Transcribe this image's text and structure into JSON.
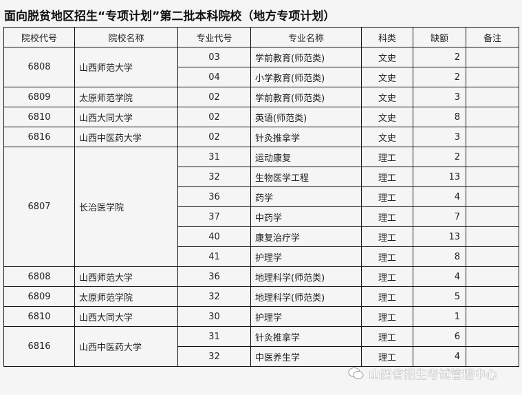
{
  "title": "面向脱贫地区招生“专项计划”第二批本科院校（地方专项计划）",
  "headers": [
    "院校代号",
    "院校名称",
    "专业代号",
    "专业名称",
    "科类",
    "缺额",
    "备注"
  ],
  "groups": [
    {
      "code": "6808",
      "name": "山西师范大学",
      "rows": [
        [
          "03",
          "学前教育(师范类)",
          "文史",
          "2",
          ""
        ],
        [
          "04",
          "小学教育(师范类)",
          "文史",
          "2",
          ""
        ]
      ]
    },
    {
      "code": "6809",
      "name": "太原师范学院",
      "rows": [
        [
          "02",
          "学前教育(师范类)",
          "文史",
          "3",
          ""
        ]
      ]
    },
    {
      "code": "6810",
      "name": "山西大同大学",
      "rows": [
        [
          "02",
          "英语(师范类)",
          "文史",
          "8",
          ""
        ]
      ]
    },
    {
      "code": "6816",
      "name": "山西中医药大学",
      "rows": [
        [
          "02",
          "针灸推拿学",
          "文史",
          "3",
          ""
        ]
      ]
    },
    {
      "code": "6807",
      "name": "长治医学院",
      "rows": [
        [
          "31",
          "运动康复",
          "理工",
          "2",
          ""
        ],
        [
          "32",
          "生物医学工程",
          "理工",
          "13",
          ""
        ],
        [
          "36",
          "药学",
          "理工",
          "4",
          ""
        ],
        [
          "37",
          "中药学",
          "理工",
          "7",
          ""
        ],
        [
          "40",
          "康复治疗学",
          "理工",
          "13",
          ""
        ],
        [
          "41",
          "护理学",
          "理工",
          "8",
          ""
        ]
      ]
    },
    {
      "code": "6808",
      "name": "山西师范大学",
      "rows": [
        [
          "36",
          "地理科学(师范类)",
          "理工",
          "4",
          ""
        ]
      ]
    },
    {
      "code": "6809",
      "name": "太原师范学院",
      "rows": [
        [
          "32",
          "地理科学(师范类)",
          "理工",
          "5",
          ""
        ]
      ]
    },
    {
      "code": "6810",
      "name": "山西大同大学",
      "rows": [
        [
          "30",
          "护理学",
          "理工",
          "1",
          ""
        ]
      ]
    },
    {
      "code": "6816",
      "name": "山西中医药大学",
      "rows": [
        [
          "31",
          "针灸推拿学",
          "理工",
          "6",
          ""
        ],
        [
          "32",
          "中医养生学",
          "理工",
          "4",
          ""
        ]
      ]
    }
  ],
  "watermark": {
    "icon": "wechat-icon",
    "text": "山西省招生考试管理中心"
  }
}
